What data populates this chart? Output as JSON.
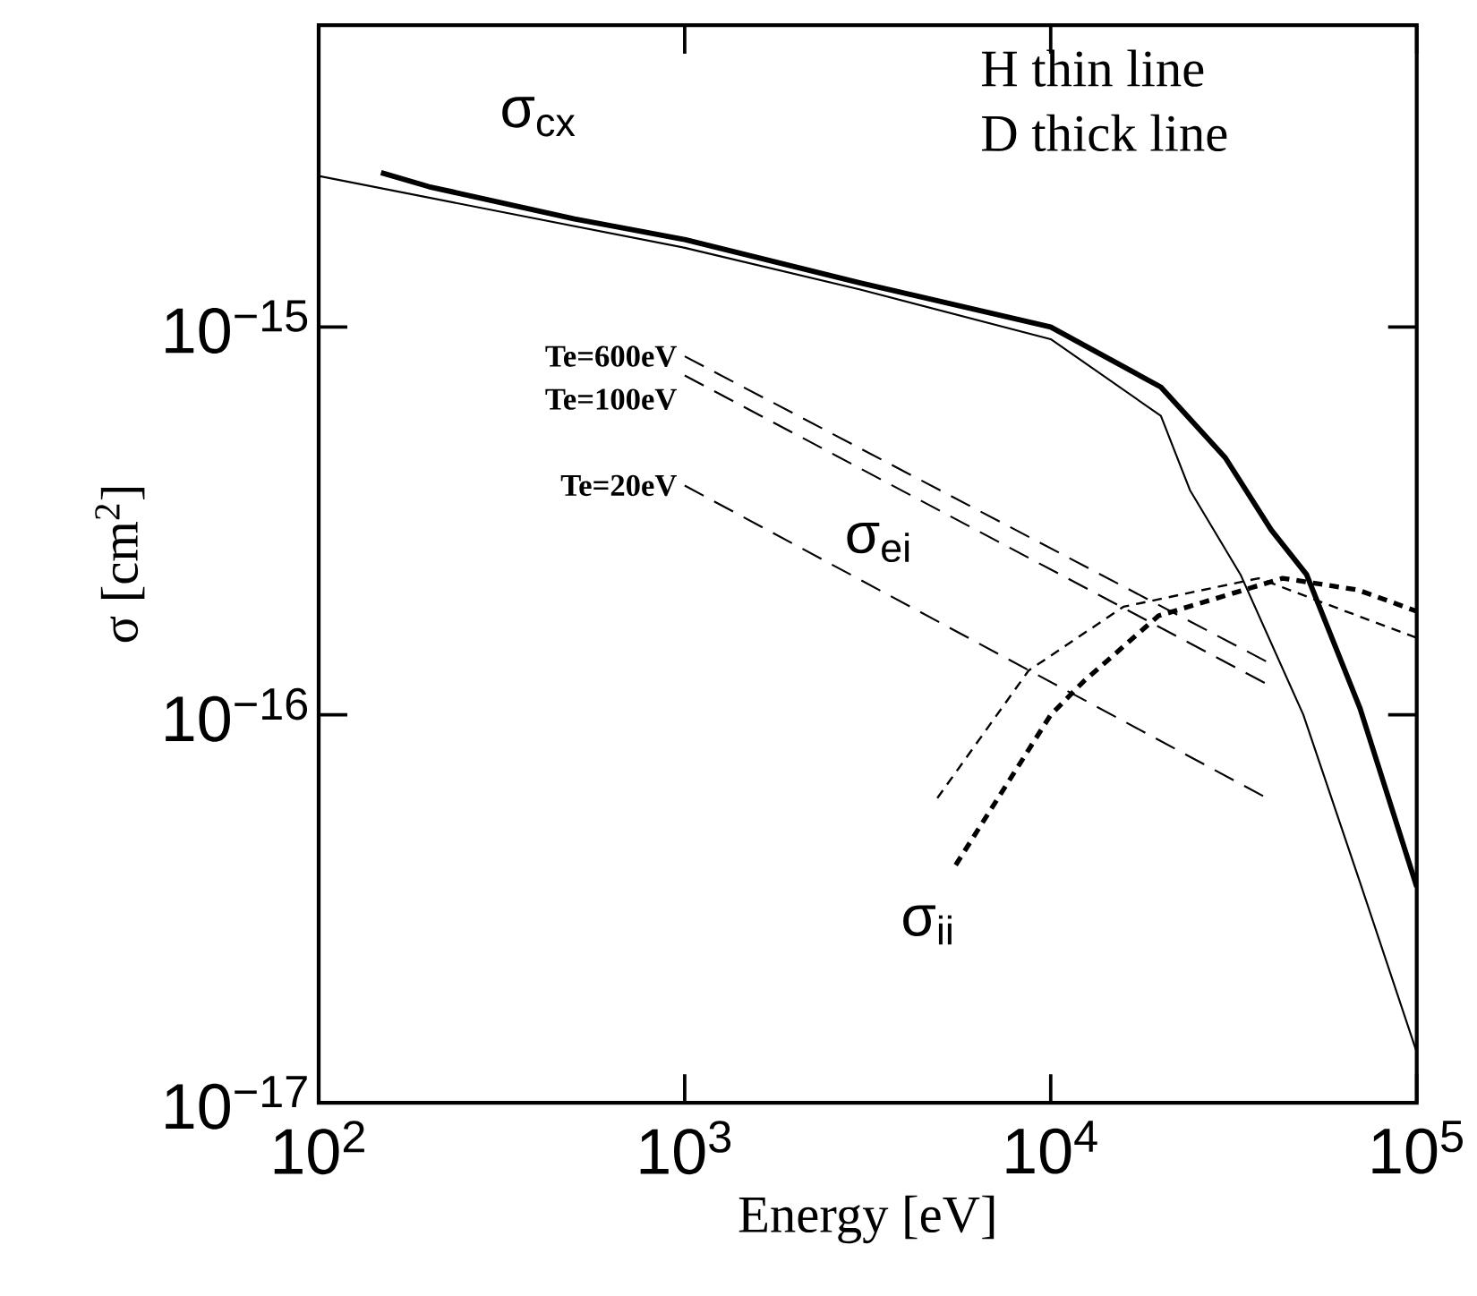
{
  "chart_data": {
    "type": "line",
    "xlabel": "Energy  [eV]",
    "ylabel": "σ [cm$^{2}$]",
    "log": "xy",
    "legend": false,
    "grid": false,
    "marker": "none",
    "xlim": [
      100,
      100000
    ],
    "ylim": [
      1e-17,
      6e-15
    ],
    "xticks": [
      {
        "value": 100,
        "label": "10$^{2}$"
      },
      {
        "value": 1000,
        "label": "10$^{3}$"
      },
      {
        "value": 10000,
        "label": "10$^{4}$"
      },
      {
        "value": 100000,
        "label": "10$^{5}$"
      }
    ],
    "yticks": [
      {
        "value": 1e-17,
        "label": "10$^{−17}$"
      },
      {
        "value": 1e-16,
        "label": "10$^{−16}$"
      },
      {
        "value": 1e-15,
        "label": "10$^{−15}$"
      }
    ],
    "series": [
      {
        "color": "#000000",
        "line_style": "solid",
        "x": [
          148,
          200,
          500,
          1000,
          3000,
          10000,
          20000,
          30000,
          40000,
          50000,
          70000,
          100000
        ],
        "values": [
          2.5e-15,
          2.3e-15,
          1.9e-15,
          1.68e-15,
          1.3e-15,
          1e-15,
          7e-16,
          4.6e-16,
          3e-16,
          2.3e-16,
          1.04e-16,
          3.6e-17
        ]
      },
      {
        "color": "#000000",
        "line_style": "solid",
        "x": [
          100,
          1000,
          3000,
          10000,
          20000,
          24000,
          33000,
          49000,
          70000,
          100000
        ],
        "values": [
          2.45e-15,
          1.6e-15,
          1.25e-15,
          9.3e-16,
          5.9e-16,
          3.8e-16,
          2.3e-16,
          1e-16,
          3.7e-17,
          1.35e-17
        ]
      },
      {
        "name": "Te=600eV",
        "color": "#000000",
        "line_style": "dashed",
        "x": [
          1000,
          39000
        ],
        "values": [
          8.4e-16,
          1.37e-16
        ]
      },
      {
        "name": "Te=100eV",
        "color": "#000000",
        "line_style": "dashed",
        "x": [
          1000,
          39000
        ],
        "values": [
          7.5e-16,
          1.2e-16
        ]
      },
      {
        "name": "Te=20eV",
        "color": "#000000",
        "line_style": "dashed",
        "x": [
          1000,
          39000
        ],
        "values": [
          3.9e-16,
          6.1e-17
        ]
      },
      {
        "color": "#000000",
        "line_style": "dotted",
        "x": [
          4900,
          8700,
          15800,
          37000,
          62000,
          100000
        ],
        "values": [
          6.1e-17,
          1.3e-16,
          1.9e-16,
          2.25e-16,
          1.87e-16,
          1.58e-16
        ]
      },
      {
        "color": "#000000",
        "line_style": "dotted",
        "x": [
          5500,
          10000,
          12300,
          19700,
          43000,
          69000,
          100000
        ],
        "values": [
          4.1e-17,
          1e-16,
          1.22e-16,
          1.8e-16,
          2.25e-16,
          2.1e-16,
          1.85e-16
        ]
      }
    ],
    "annotations": [
      "σ$_{cx}$",
      "σ$_{ei}$",
      "σ$_{ii}$",
      "H thin line",
      "D thick line"
    ]
  }
}
